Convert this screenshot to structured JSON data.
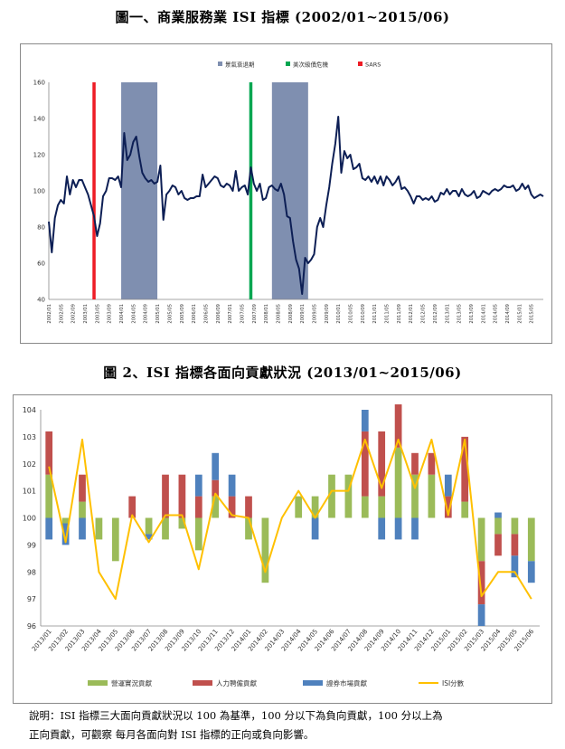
{
  "chart1": {
    "title": "圖一、商業服務業 ISI 指標 (2002/01~2015/06)",
    "ylim": [
      40,
      160
    ],
    "yticks": [
      40,
      60,
      80,
      100,
      120,
      140,
      160
    ],
    "legend": [
      {
        "label": "景氣衰退期",
        "color": "#7f8fb0"
      },
      {
        "label": "美次級債危機",
        "color": "#00a651"
      },
      {
        "label": "SARS",
        "color": "#ee1c25"
      }
    ],
    "colors": {
      "line": "#0d1f55",
      "recession": "#7f8fb0",
      "subprime": "#00a651",
      "sars": "#ee1c25"
    },
    "x_labels": [
      "2002/01",
      "2002/05",
      "2002/09",
      "2003/01",
      "2003/05",
      "2003/09",
      "2004/01",
      "2004/05",
      "2004/09",
      "2005/01",
      "2005/05",
      "2005/09",
      "2006/01",
      "2006/05",
      "2006/09",
      "2007/01",
      "2007/05",
      "2007/09",
      "2008/01",
      "2008/05",
      "2008/09",
      "2009/01",
      "2009/05",
      "2009/09",
      "2010/01",
      "2010/05",
      "2010/09",
      "2011/01",
      "2011/05",
      "2011/09",
      "2012/01",
      "2012/05",
      "2012/09",
      "2013/01",
      "2013/05",
      "2013/09",
      "2014/01",
      "2014/05",
      "2014/09",
      "2015/01",
      "2015/05"
    ],
    "recession_periods": [
      [
        "2004/01",
        "2005/01"
      ],
      [
        "2008/03",
        "2009/03"
      ]
    ],
    "subprime_date": "2007/08",
    "sars_date": "2003/04",
    "chart_data": {
      "type": "line",
      "x_start": "2002/01",
      "x_end": "2015/06",
      "values": [
        83,
        66,
        85,
        92,
        95,
        93,
        108,
        98,
        106,
        102,
        106,
        106,
        102,
        98,
        92,
        86,
        75,
        82,
        97,
        100,
        107,
        107,
        106,
        108,
        102,
        132,
        117,
        120,
        127,
        130,
        119,
        110,
        107,
        105,
        106,
        104,
        105,
        114,
        84,
        98,
        100,
        103,
        102,
        98,
        100,
        96,
        95,
        96,
        96,
        97,
        97,
        109,
        102,
        104,
        106,
        108,
        107,
        103,
        102,
        104,
        103,
        100,
        111,
        100,
        102,
        103,
        98,
        113,
        104,
        100,
        104,
        95,
        96,
        102,
        103,
        101,
        100,
        104,
        98,
        86,
        85,
        72,
        62,
        57,
        43,
        63,
        60,
        62,
        65,
        80,
        85,
        80,
        92,
        102,
        115,
        126,
        141,
        110,
        122,
        118,
        120,
        112,
        113,
        115,
        107,
        106,
        108,
        105,
        108,
        104,
        108,
        103,
        108,
        106,
        103,
        105,
        108,
        101,
        102,
        100,
        97,
        93,
        97,
        97,
        95,
        96,
        95,
        97,
        94,
        95,
        99,
        98,
        101,
        98,
        100,
        100,
        97,
        101,
        98,
        97,
        98,
        100,
        96,
        97,
        100,
        99,
        98,
        100,
        101,
        100,
        101,
        103,
        102,
        102,
        103,
        100,
        101,
        104,
        101,
        103,
        98,
        96,
        97,
        98,
        97
      ]
    }
  },
  "chart2": {
    "title": "圖 2、ISI 指標各面向貢獻狀況 (2013/01~2015/06)",
    "ylim": [
      96,
      104
    ],
    "yticks": [
      96,
      97,
      98,
      99,
      100,
      101,
      102,
      103,
      104
    ],
    "colors": {
      "ops": "#9bbb59",
      "hr": "#c0504d",
      "mkt": "#4f81bd",
      "isi": "#ffc000"
    },
    "chart_data": {
      "type": "bar",
      "categories": [
        "2013/01",
        "2013/02",
        "2013/03",
        "2013/04",
        "2013/05",
        "2013/06",
        "2013/07",
        "2013/08",
        "2013/09",
        "2013/10",
        "2013/11",
        "2013/12",
        "2014/01",
        "2014/02",
        "2014/03",
        "2014/04",
        "2014/05",
        "2014/06",
        "2014/07",
        "2014/08",
        "2014/09",
        "2014/10",
        "2014/11",
        "2014/12",
        "2015/01",
        "2015/02",
        "2015/03",
        "2015/04",
        "2015/05",
        "2015/06"
      ],
      "x_labels": [
        "2013/01",
        "2013/02",
        "2013/03",
        "2013/04",
        "2013/05",
        "2013/06",
        "2013/07",
        "2013/08",
        "2013/09",
        "2013/10",
        "2013/11",
        "2013/12",
        "2014/01",
        "2014/02",
        "2014/03",
        "2014/04",
        "2014/05",
        "2014/06",
        "2014/07",
        "2014/08",
        "2014/09",
        "2014/10",
        "2014/11",
        "2014/12",
        "2015/01",
        "2015/02",
        "2015/03",
        "2015/04",
        "2015/05",
        "2015/06"
      ],
      "baseline": 100,
      "series": [
        {
          "name": "營運實況貢獻",
          "key": "ops",
          "values": [
            1.6,
            -0.2,
            0.6,
            -0.8,
            -1.6,
            0,
            -0.6,
            -0.8,
            -0.4,
            -1.2,
            0.8,
            0,
            -0.8,
            -2.4,
            0,
            0.8,
            0.8,
            1.6,
            1.6,
            0.8,
            0.8,
            2.6,
            1.6,
            1.6,
            0,
            0.6,
            -1.6,
            -0.6,
            -0.6,
            -1.6
          ]
        },
        {
          "name": "人力聘僱貢獻",
          "key": "hr",
          "values": [
            1.6,
            0,
            1.0,
            0,
            0,
            0.8,
            0,
            1.6,
            1.6,
            0.8,
            0.6,
            0.8,
            0.8,
            0,
            0,
            0,
            0,
            0,
            0,
            2.4,
            2.4,
            1.6,
            0.8,
            0.8,
            0.8,
            2.4,
            -1.6,
            -0.8,
            -0.8,
            0
          ]
        },
        {
          "name": "證券市場貢獻",
          "key": "mkt",
          "values": [
            -0.8,
            -0.8,
            -0.8,
            0,
            0,
            0,
            -0.2,
            0,
            0,
            0.8,
            1.0,
            0.8,
            0,
            0,
            0,
            0,
            -0.8,
            0,
            0,
            0.8,
            -0.8,
            -0.8,
            -0.8,
            0,
            0.8,
            0,
            -0.8,
            0.2,
            -0.8,
            -0.8
          ]
        },
        {
          "name": "ISI分數",
          "key": "isi",
          "type": "line",
          "values": [
            101.9,
            99.1,
            102.9,
            98.0,
            97.0,
            100.1,
            99.1,
            100.1,
            100.1,
            98.1,
            100.9,
            100.1,
            100.0,
            98.0,
            100.0,
            101.0,
            100.0,
            101.0,
            101.0,
            102.9,
            101.1,
            102.9,
            101.1,
            102.9,
            100.1,
            102.9,
            97.1,
            98.0,
            98.0,
            97.0
          ]
        }
      ]
    }
  },
  "note": {
    "line1": "說明：ISI 指標三大面向貢獻狀況以 100 為基準，100 分以下為負向貢獻，100 分以上為",
    "line2": "正向貢獻，可觀察 每月各面向對 ISI 指標的正向或負向影響。"
  }
}
